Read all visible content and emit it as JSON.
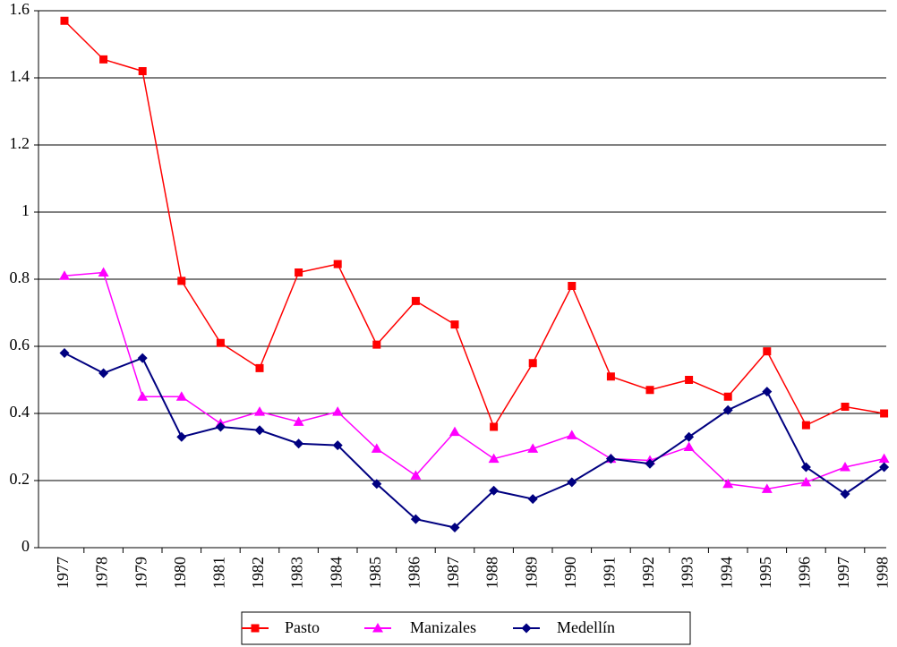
{
  "chart_data": {
    "type": "line",
    "categories": [
      "1977",
      "1978",
      "1979",
      "1980",
      "1981",
      "1982",
      "1983",
      "1984",
      "1985",
      "1986",
      "1987",
      "1988",
      "1989",
      "1990",
      "1991",
      "1992",
      "1993",
      "1994",
      "1995",
      "1996",
      "1997",
      "1998"
    ],
    "series": [
      {
        "name": "Pasto",
        "color": "#ff0000",
        "marker": "square",
        "values": [
          1.57,
          1.455,
          1.42,
          0.795,
          0.61,
          0.535,
          0.82,
          0.845,
          0.605,
          0.735,
          0.665,
          0.36,
          0.55,
          0.78,
          0.51,
          0.47,
          0.5,
          0.45,
          0.585,
          0.365,
          0.42,
          0.4
        ]
      },
      {
        "name": "Manizales",
        "color": "#ff00ff",
        "marker": "triangle",
        "values": [
          0.81,
          0.82,
          0.45,
          0.45,
          0.37,
          0.405,
          0.375,
          0.405,
          0.295,
          0.215,
          0.345,
          0.265,
          0.295,
          0.335,
          0.265,
          0.26,
          0.3,
          0.19,
          0.175,
          0.195,
          0.24,
          0.265
        ]
      },
      {
        "name": "Medellín",
        "color": "#000080",
        "marker": "diamond",
        "values": [
          0.58,
          0.52,
          0.565,
          0.33,
          0.36,
          0.35,
          0.31,
          0.305,
          0.19,
          0.085,
          0.06,
          0.17,
          0.145,
          0.195,
          0.265,
          0.25,
          0.33,
          0.41,
          0.465,
          0.24,
          0.16,
          0.24
        ]
      }
    ],
    "ylim": [
      0,
      1.6
    ],
    "yticks": [
      0,
      0.2,
      0.4,
      0.6,
      0.8,
      1,
      1.2,
      1.4,
      1.6
    ],
    "grid": true,
    "legend": "bottom"
  }
}
